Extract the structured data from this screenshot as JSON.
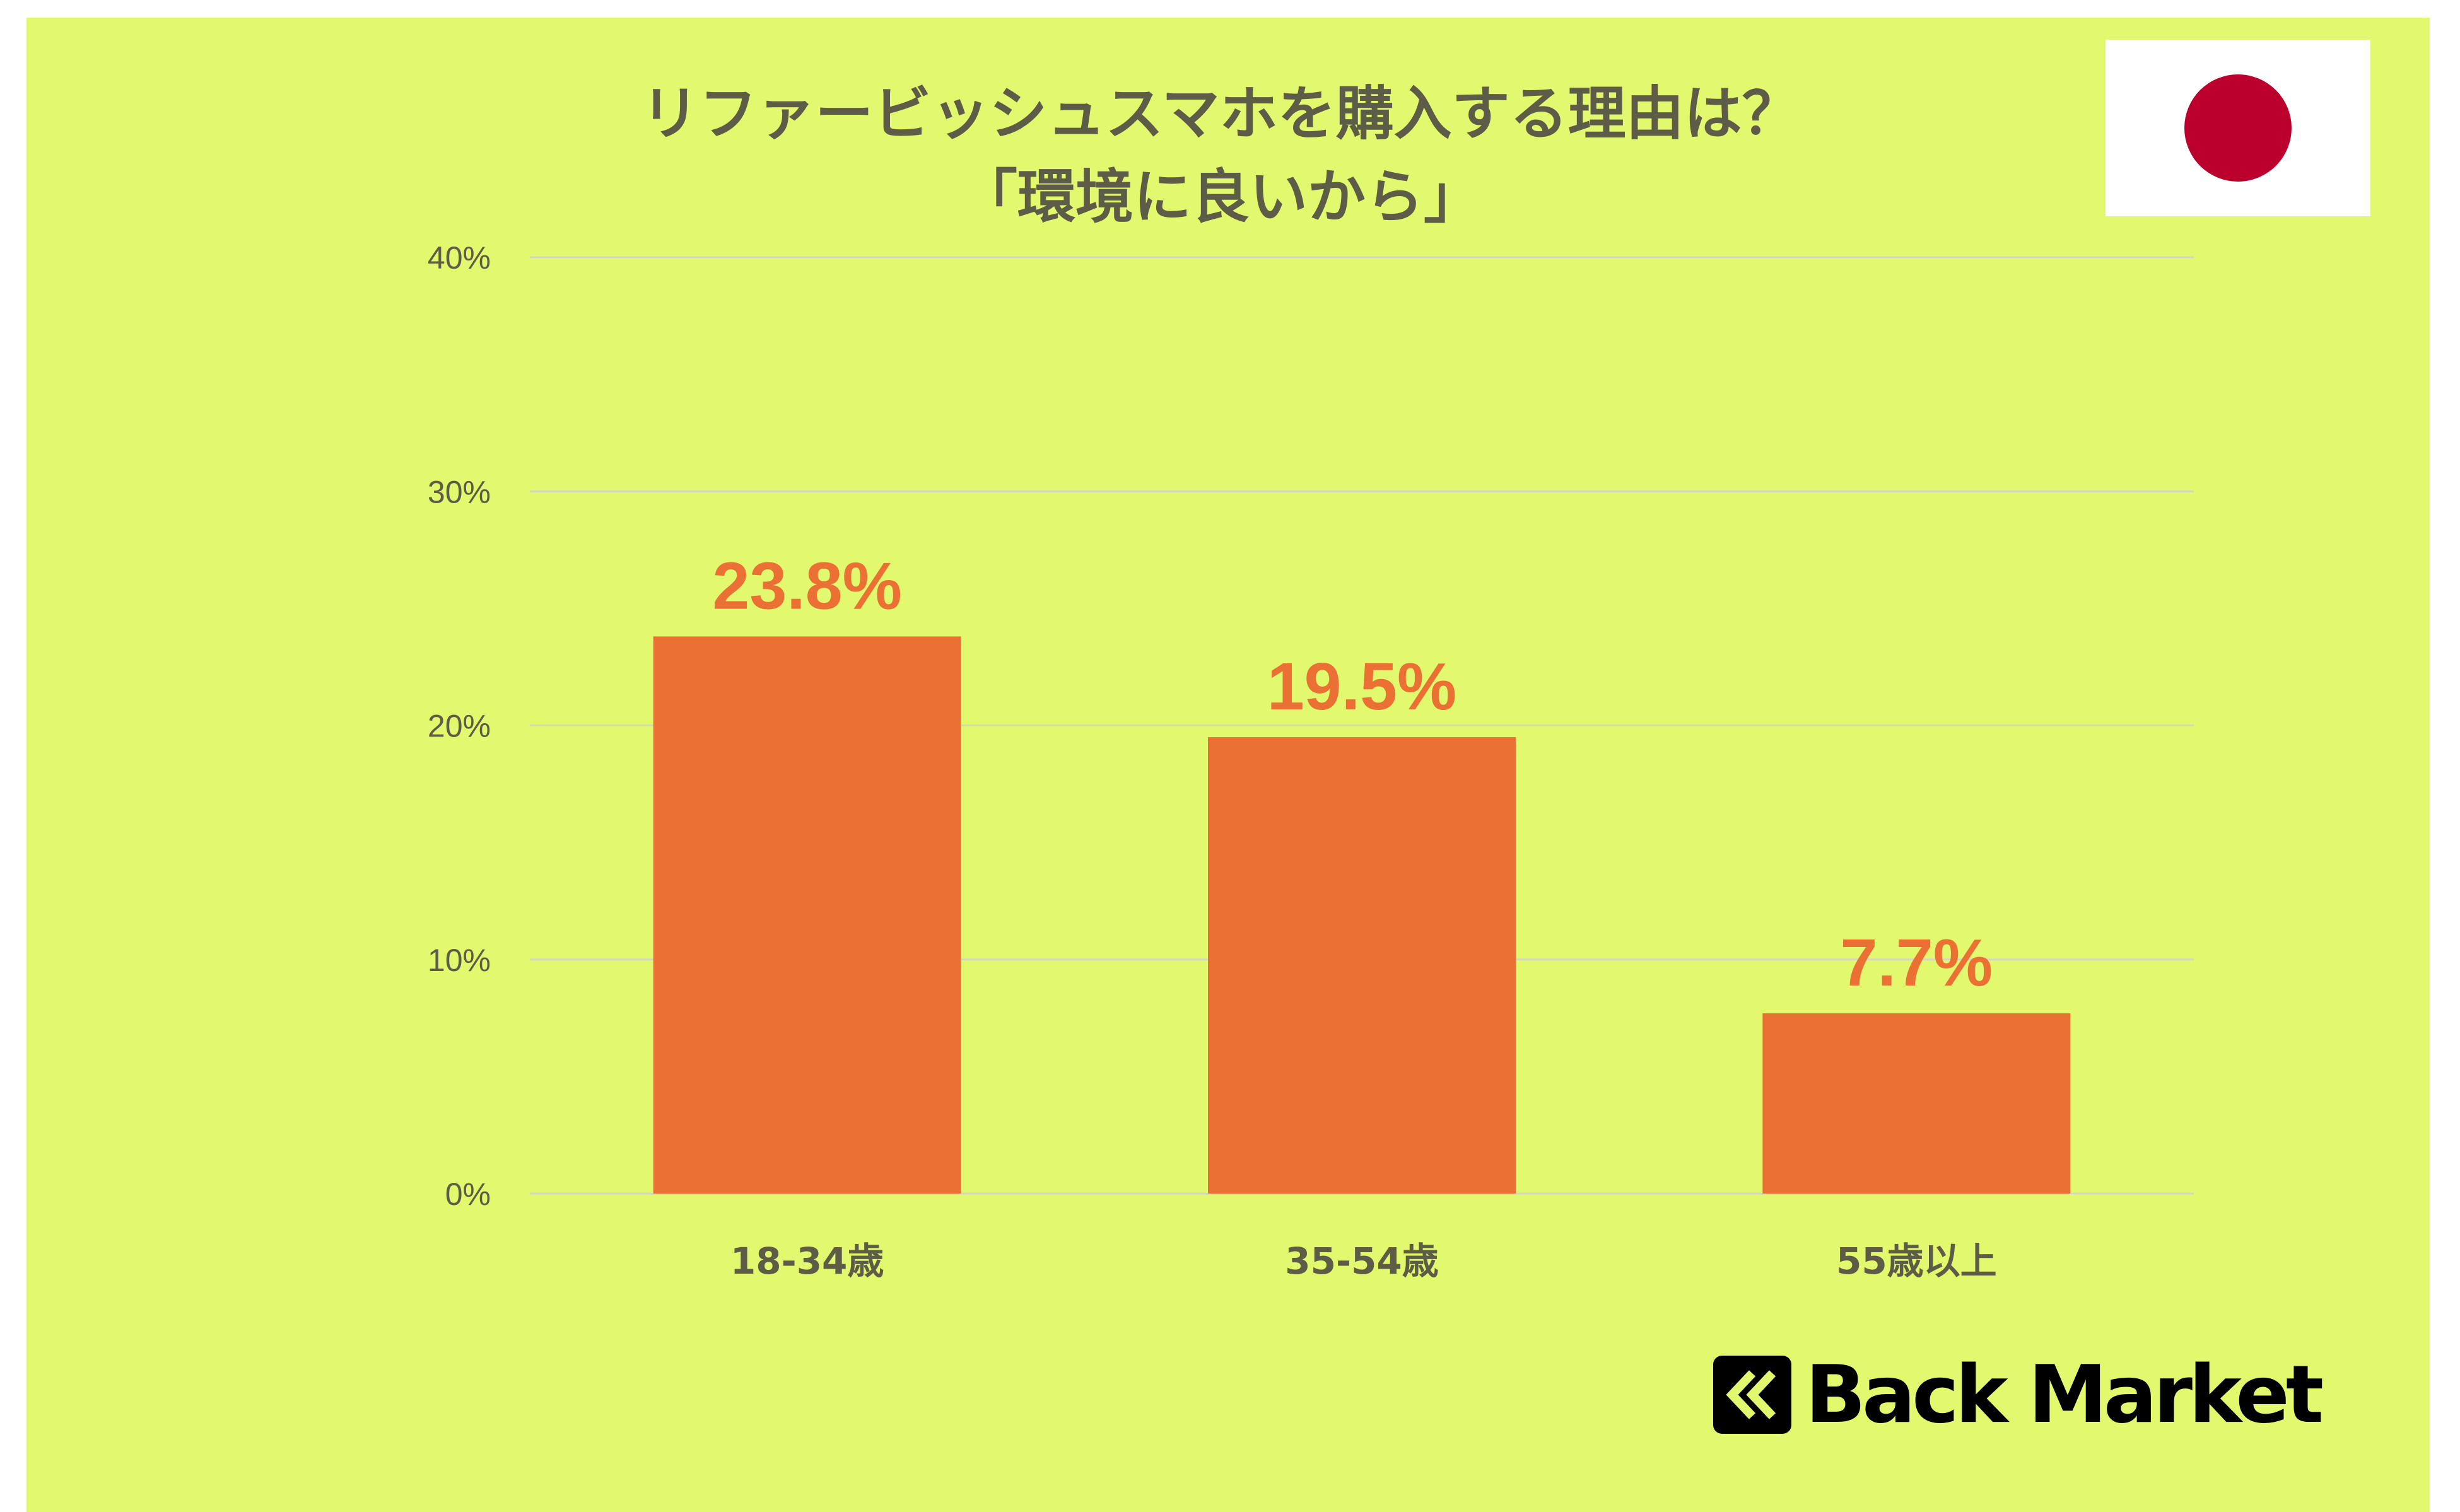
{
  "title_lines": [
    "リファービッシュスマホを購入する理由は？",
    "「環境に良いから」"
  ],
  "brand": {
    "name": "Back Market",
    "logo_icon": "back-market-logo-icon"
  },
  "flag": {
    "icon": "japan-flag-icon",
    "background": "#ffffff",
    "sun_color": "#bc002d"
  },
  "colors": {
    "background": "#e2f86f",
    "bar": "#ea7033",
    "label": "#ea7033",
    "text": "#5d5d47",
    "grid": "#d5d5c8"
  },
  "chart_data": {
    "type": "bar",
    "title": "リファービッシュスマホを購入する理由は？「環境に良いから」",
    "categories": [
      "18-34歳",
      "35-54歳",
      "55歳以上"
    ],
    "values": [
      23.8,
      19.5,
      7.7
    ],
    "data_labels": [
      "23.8%",
      "19.5%",
      "7.7%"
    ],
    "xlabel": "",
    "ylabel": "",
    "ylim": [
      0,
      40
    ],
    "yticks": [
      0,
      10,
      20,
      30,
      40
    ],
    "ytick_labels": [
      "0%",
      "10%",
      "20%",
      "30%",
      "40%"
    ],
    "grid": true,
    "legend": "none"
  }
}
